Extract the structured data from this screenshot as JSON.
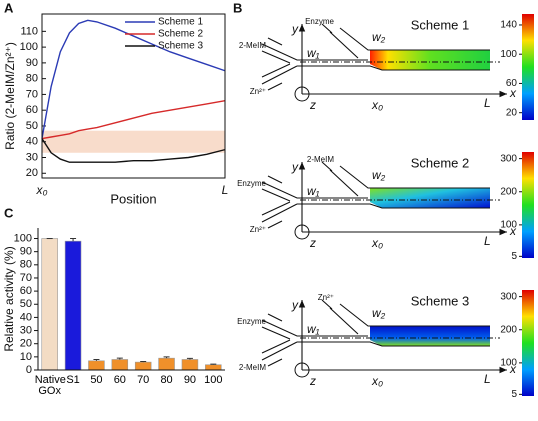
{
  "chart_data": [
    {
      "type": "line",
      "panel_label": "A",
      "ylabel": "Ratio (2-MeIM/Zn²⁺)",
      "xlabel": "Position",
      "x": [
        0,
        0.05,
        0.1,
        0.15,
        0.2,
        0.25,
        0.3,
        0.4,
        0.5,
        0.6,
        0.7,
        0.8,
        0.9,
        1.0
      ],
      "xlim": [
        0,
        1
      ],
      "xticks": [
        {
          "value": 0,
          "label": "x₀"
        },
        {
          "value": 1,
          "label": "L"
        }
      ],
      "ylim": [
        17,
        121
      ],
      "yticks": [
        20,
        30,
        40,
        50,
        60,
        70,
        80,
        90,
        100,
        110
      ],
      "band": [
        33,
        47
      ],
      "band_color": "#f8dccb",
      "legend": "top-right",
      "series": [
        {
          "name": "Scheme 1",
          "color": "#2b3bb5",
          "values": [
            42,
            75,
            97,
            109,
            115,
            117,
            116,
            112,
            107,
            102,
            97,
            93,
            89,
            85
          ]
        },
        {
          "name": "Scheme 2",
          "color": "#d62a2a",
          "values": [
            42,
            43,
            44,
            45,
            47,
            48,
            49,
            52,
            55,
            58,
            60,
            62,
            64,
            66
          ]
        },
        {
          "name": "Scheme 3",
          "color": "#111111",
          "values": [
            42,
            33,
            29,
            27,
            27,
            27,
            27,
            27,
            28,
            28,
            29,
            30,
            32,
            35
          ]
        }
      ]
    },
    {
      "type": "bar",
      "panel_label": "C",
      "ylabel": "Relative activity (%)",
      "categories": [
        "Native GOx",
        "S1",
        "50",
        "60",
        "70",
        "80",
        "90",
        "100"
      ],
      "values": [
        100,
        98,
        7,
        8,
        6,
        9,
        8,
        4
      ],
      "errors": [
        0,
        2,
        1,
        1,
        0.5,
        1,
        0.8,
        0.5
      ],
      "colors": [
        "#f3dcc4",
        "#1a1adb",
        "#f0902a",
        "#f0902a",
        "#f0902a",
        "#f0902a",
        "#f0902a",
        "#f0902a"
      ],
      "ylim": [
        0,
        108
      ],
      "yticks": [
        0,
        10,
        20,
        30,
        40,
        50,
        60,
        70,
        80,
        90,
        100
      ]
    }
  ],
  "diagram": {
    "panel_label": "B",
    "axis_labels": {
      "y": "y",
      "x": "x",
      "z": "z",
      "x0": "x₀",
      "L": "L",
      "w1": "w₁",
      "w2": "w₂"
    },
    "schemes": [
      {
        "title": "Scheme 1",
        "top_inlet": "Enzyme",
        "upper_inlet": "2-MeIM",
        "lower_inlet": "Zn²⁺",
        "colorbar": {
          "lim": [
            10,
            155
          ],
          "ticks": [
            20,
            60,
            100,
            140
          ]
        }
      },
      {
        "title": "Scheme 2",
        "top_inlet": "2-MeIM",
        "upper_inlet": "Enzyme",
        "lower_inlet": "Zn²⁺",
        "colorbar": {
          "lim": [
            0,
            320
          ],
          "ticks": [
            5,
            100,
            200,
            300
          ]
        }
      },
      {
        "title": "Scheme 3",
        "top_inlet": "Zn²⁺",
        "upper_inlet": "Enzyme",
        "lower_inlet": "2-MeIM",
        "colorbar": {
          "lim": [
            0,
            320
          ],
          "ticks": [
            5,
            100,
            200,
            300
          ]
        }
      }
    ]
  }
}
